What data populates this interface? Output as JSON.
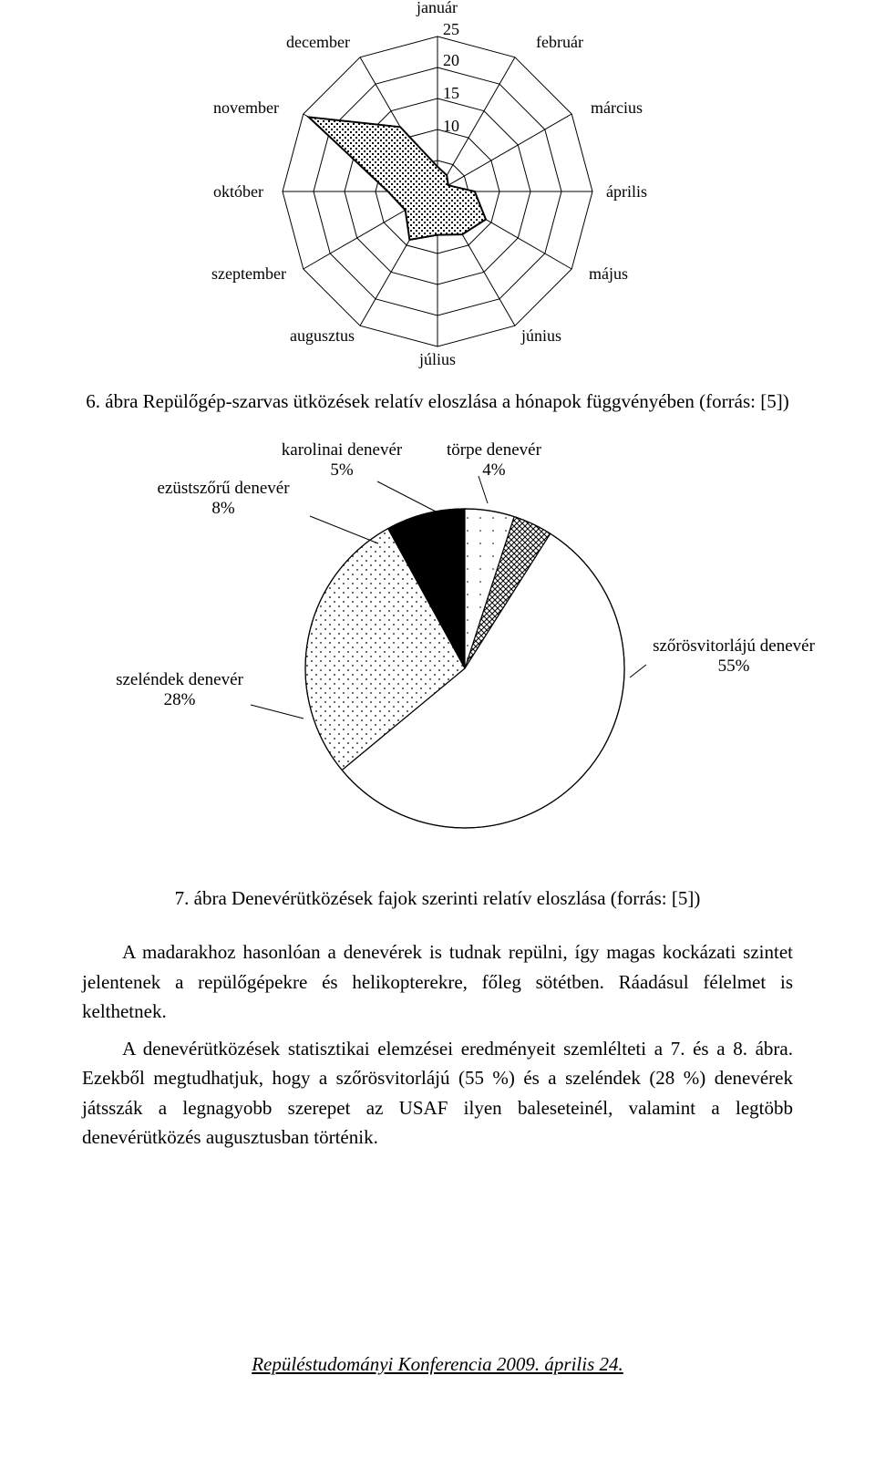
{
  "radar": {
    "type": "radar",
    "axes": [
      "január",
      "február",
      "március",
      "április",
      "május",
      "június",
      "július",
      "augusztus",
      "szeptember",
      "október",
      "november",
      "december"
    ],
    "tick_values": [
      10,
      15,
      20,
      25
    ],
    "tick_max": 25,
    "values": [
      4,
      3,
      2,
      6,
      9,
      8,
      7,
      9,
      6,
      8,
      24,
      12
    ],
    "grid_color": "#000000",
    "series_fill": "crosshatch",
    "series_stroke": "#000000",
    "background_color": "#ffffff",
    "label_fontsize": 18
  },
  "caption_radar": "6. ábra Repülőgép-szarvas ütközések relatív eloszlása a hónapok függvényében (forrás: [5])",
  "pie": {
    "type": "pie",
    "slices": [
      {
        "label_name": "törpe denevér",
        "label_pct": "4%",
        "value": 4,
        "fill": "crosshatch",
        "stroke": "#000000"
      },
      {
        "label_name": "szőrösvitorlájú denevér",
        "label_pct": "55%",
        "value": 55,
        "fill": "#ffffff",
        "stroke": "#000000"
      },
      {
        "label_name": "szeléndek denevér",
        "label_pct": "28%",
        "value": 28,
        "fill": "dots",
        "stroke": "#000000"
      },
      {
        "label_name": "ezüstszőrű denevér",
        "label_pct": "8%",
        "value": 8,
        "fill": "#000000",
        "stroke": "#000000"
      },
      {
        "label_name": "karolinai denevér",
        "label_pct": "5%",
        "value": 5,
        "fill": "sparse-dots",
        "stroke": "#000000"
      }
    ],
    "start_angle_deg": -72,
    "radius": 175,
    "stroke_color": "#000000",
    "leader_color": "#000000",
    "background_color": "#ffffff",
    "label_fontsize": 19
  },
  "caption_pie": "7. ábra Denevérütközések fajok szerinti relatív eloszlása (forrás: [5])",
  "para1": "A madarakhoz hasonlóan a denevérek is tudnak repülni, így magas kockázati szintet jelentenek a repülőgépekre és helikopterekre, főleg sötétben. Ráadásul félelmet is kelthetnek.",
  "para2": "A denevérütközések statisztikai elemzései eredményeit szemlélteti a 7. és a 8. ábra. Ezekből megtudhatjuk, hogy a szőrösvitorlájú (55 %) és a szeléndek (28 %) denevérek játsszák a legnagyobb szerepet az USAF ilyen baleseteinél, valamint a legtöbb denevérütközés augusztusban történik.",
  "footer": "Repüléstudományi Konferencia 2009. április 24."
}
